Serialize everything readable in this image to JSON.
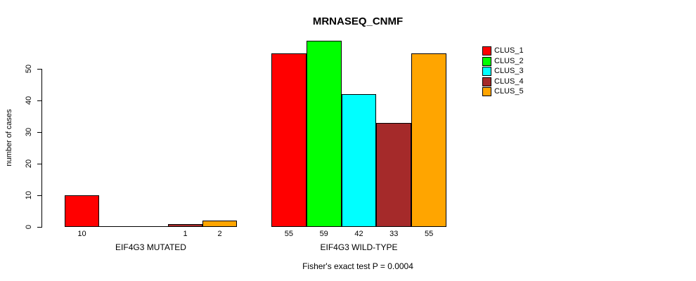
{
  "chart_data": {
    "type": "bar",
    "title": "MRNASEQ_CNMF",
    "ylabel": "number of cases",
    "xlabel": "",
    "ylim": [
      0,
      60
    ],
    "yticks": [
      0,
      10,
      20,
      30,
      40,
      50
    ],
    "grid": false,
    "legend_position": "right",
    "groups": [
      "EIF4G3 MUTATED",
      "EIF4G3 WILD-TYPE"
    ],
    "series": [
      {
        "name": "CLUS_1",
        "color": "#ff0000",
        "values": [
          10,
          55
        ]
      },
      {
        "name": "CLUS_2",
        "color": "#00ff00",
        "values": [
          0,
          59
        ]
      },
      {
        "name": "CLUS_3",
        "color": "#00ffff",
        "values": [
          0,
          42
        ]
      },
      {
        "name": "CLUS_4",
        "color": "#a52a2a",
        "values": [
          1,
          33
        ]
      },
      {
        "name": "CLUS_5",
        "color": "#ffa500",
        "values": [
          2,
          55
        ]
      }
    ],
    "bar_value_labels": [
      [
        "10",
        "",
        "",
        "1",
        "2"
      ],
      [
        "55",
        "59",
        "42",
        "33",
        "55"
      ]
    ],
    "annotation": "Fisher's exact test P = 0.0004"
  }
}
